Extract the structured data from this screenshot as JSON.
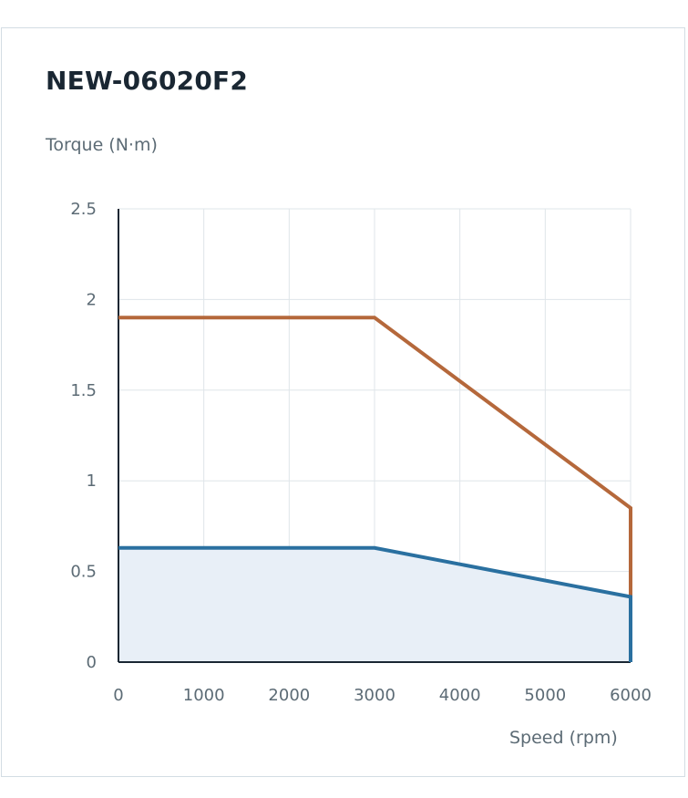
{
  "chart_data": {
    "type": "line",
    "title": "NEW-06020F2",
    "ylabel": "Torque (N·m)",
    "xlabel": "Speed (rpm)",
    "xlim": [
      0,
      6000
    ],
    "ylim": [
      0,
      2.5
    ],
    "x_ticks": [
      "0",
      "1000",
      "2000",
      "3000",
      "4000",
      "5000",
      "6000"
    ],
    "y_ticks": [
      "0",
      "0.5",
      "1",
      "1.5",
      "2",
      "2.5"
    ],
    "grid": true,
    "series": [
      {
        "color": "#b5683b",
        "x": [
          0,
          3000,
          6000,
          6000
        ],
        "y": [
          1.9,
          1.9,
          0.85,
          0
        ],
        "filled": false
      },
      {
        "color": "#2a70a0",
        "x": [
          0,
          3000,
          6000,
          6000
        ],
        "y": [
          0.63,
          0.63,
          0.36,
          0
        ],
        "filled": true,
        "fill_color": "#e8eff7"
      }
    ]
  }
}
